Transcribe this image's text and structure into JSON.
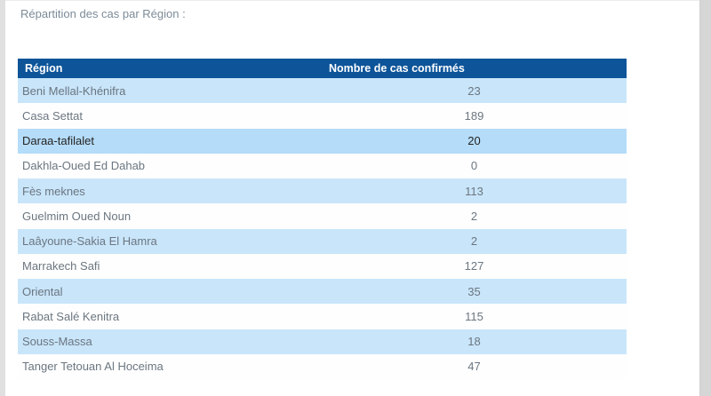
{
  "page": {
    "title": "Répartition des cas par Région :"
  },
  "table": {
    "columns": [
      {
        "label": "Région"
      },
      {
        "label": "Nombre de cas confirmés"
      }
    ],
    "rows": [
      {
        "region": "Beni Mellal-Khénifra",
        "value": "23",
        "highlighted": false
      },
      {
        "region": "Casa Settat",
        "value": "189",
        "highlighted": false
      },
      {
        "region": "Daraa-tafilalet",
        "value": "20",
        "highlighted": true
      },
      {
        "region": "Dakhla-Oued Ed Dahab",
        "value": "0",
        "highlighted": false
      },
      {
        "region": "Fès meknes",
        "value": "113",
        "highlighted": false
      },
      {
        "region": "Guelmim Oued Noun",
        "value": "2",
        "highlighted": false
      },
      {
        "region": "Laâyoune-Sakia El Hamra",
        "value": "2",
        "highlighted": false
      },
      {
        "region": "Marrakech Safi",
        "value": "127",
        "highlighted": false
      },
      {
        "region": "Oriental",
        "value": "35",
        "highlighted": false
      },
      {
        "region": "Rabat Salé Kenitra",
        "value": "115",
        "highlighted": false
      },
      {
        "region": "Souss-Massa",
        "value": "18",
        "highlighted": false
      },
      {
        "region": "Tanger Tetouan Al Hoceima",
        "value": "47",
        "highlighted": false
      }
    ]
  },
  "chart_data": {
    "type": "table",
    "title": "Répartition des cas par Région",
    "categories": [
      "Beni Mellal-Khénifra",
      "Casa Settat",
      "Daraa-tafilalet",
      "Dakhla-Oued Ed Dahab",
      "Fès meknes",
      "Guelmim Oued Noun",
      "Laâyoune-Sakia El Hamra",
      "Marrakech Safi",
      "Oriental",
      "Rabat Salé Kenitra",
      "Souss-Massa",
      "Tanger Tetouan Al Hoceima"
    ],
    "values": [
      23,
      189,
      20,
      0,
      113,
      2,
      2,
      127,
      35,
      115,
      18,
      47
    ]
  },
  "colors": {
    "header_bg": "#0d5499",
    "header_text": "#ffffff",
    "row_alt_bg": "#c9e5fa",
    "row_highlight_bg": "#b5dcf8",
    "row_text": "#6b7680",
    "row_highlight_text": "#252423",
    "title_text": "#7c8b98",
    "gutter": "#e0e0e0",
    "scrollbar": "#d6d6d6"
  }
}
